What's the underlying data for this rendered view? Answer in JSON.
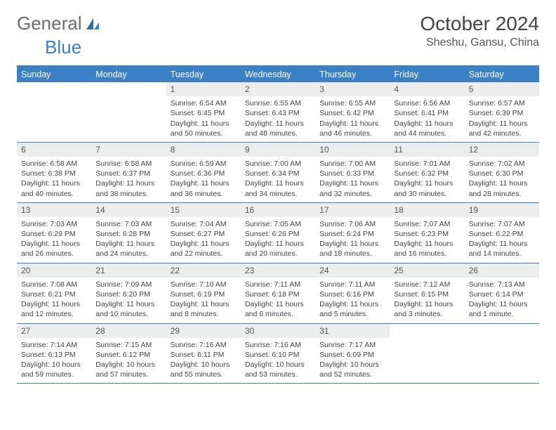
{
  "logo": {
    "text1": "General",
    "text2": "Blue"
  },
  "title": "October 2024",
  "location": "Sheshu, Gansu, China",
  "colors": {
    "header_bg": "#3b7fc4",
    "daynum_bg": "#eceded",
    "text": "#444444",
    "logo_gray": "#6b6b6b",
    "logo_blue": "#3b7fc4"
  },
  "dow": [
    "Sunday",
    "Monday",
    "Tuesday",
    "Wednesday",
    "Thursday",
    "Friday",
    "Saturday"
  ],
  "weeks": [
    [
      {
        "empty": true
      },
      {
        "empty": true
      },
      {
        "n": "1",
        "sr": "Sunrise: 6:54 AM",
        "ss": "Sunset: 6:45 PM",
        "dl1": "Daylight: 11 hours",
        "dl2": "and 50 minutes."
      },
      {
        "n": "2",
        "sr": "Sunrise: 6:55 AM",
        "ss": "Sunset: 6:43 PM",
        "dl1": "Daylight: 11 hours",
        "dl2": "and 48 minutes."
      },
      {
        "n": "3",
        "sr": "Sunrise: 6:55 AM",
        "ss": "Sunset: 6:42 PM",
        "dl1": "Daylight: 11 hours",
        "dl2": "and 46 minutes."
      },
      {
        "n": "4",
        "sr": "Sunrise: 6:56 AM",
        "ss": "Sunset: 6:41 PM",
        "dl1": "Daylight: 11 hours",
        "dl2": "and 44 minutes."
      },
      {
        "n": "5",
        "sr": "Sunrise: 6:57 AM",
        "ss": "Sunset: 6:39 PM",
        "dl1": "Daylight: 11 hours",
        "dl2": "and 42 minutes."
      }
    ],
    [
      {
        "n": "6",
        "sr": "Sunrise: 6:58 AM",
        "ss": "Sunset: 6:38 PM",
        "dl1": "Daylight: 11 hours",
        "dl2": "and 40 minutes."
      },
      {
        "n": "7",
        "sr": "Sunrise: 6:58 AM",
        "ss": "Sunset: 6:37 PM",
        "dl1": "Daylight: 11 hours",
        "dl2": "and 38 minutes."
      },
      {
        "n": "8",
        "sr": "Sunrise: 6:59 AM",
        "ss": "Sunset: 6:36 PM",
        "dl1": "Daylight: 11 hours",
        "dl2": "and 36 minutes."
      },
      {
        "n": "9",
        "sr": "Sunrise: 7:00 AM",
        "ss": "Sunset: 6:34 PM",
        "dl1": "Daylight: 11 hours",
        "dl2": "and 34 minutes."
      },
      {
        "n": "10",
        "sr": "Sunrise: 7:00 AM",
        "ss": "Sunset: 6:33 PM",
        "dl1": "Daylight: 11 hours",
        "dl2": "and 32 minutes."
      },
      {
        "n": "11",
        "sr": "Sunrise: 7:01 AM",
        "ss": "Sunset: 6:32 PM",
        "dl1": "Daylight: 11 hours",
        "dl2": "and 30 minutes."
      },
      {
        "n": "12",
        "sr": "Sunrise: 7:02 AM",
        "ss": "Sunset: 6:30 PM",
        "dl1": "Daylight: 11 hours",
        "dl2": "and 28 minutes."
      }
    ],
    [
      {
        "n": "13",
        "sr": "Sunrise: 7:03 AM",
        "ss": "Sunset: 6:29 PM",
        "dl1": "Daylight: 11 hours",
        "dl2": "and 26 minutes."
      },
      {
        "n": "14",
        "sr": "Sunrise: 7:03 AM",
        "ss": "Sunset: 6:28 PM",
        "dl1": "Daylight: 11 hours",
        "dl2": "and 24 minutes."
      },
      {
        "n": "15",
        "sr": "Sunrise: 7:04 AM",
        "ss": "Sunset: 6:27 PM",
        "dl1": "Daylight: 11 hours",
        "dl2": "and 22 minutes."
      },
      {
        "n": "16",
        "sr": "Sunrise: 7:05 AM",
        "ss": "Sunset: 6:26 PM",
        "dl1": "Daylight: 11 hours",
        "dl2": "and 20 minutes."
      },
      {
        "n": "17",
        "sr": "Sunrise: 7:06 AM",
        "ss": "Sunset: 6:24 PM",
        "dl1": "Daylight: 11 hours",
        "dl2": "and 18 minutes."
      },
      {
        "n": "18",
        "sr": "Sunrise: 7:07 AM",
        "ss": "Sunset: 6:23 PM",
        "dl1": "Daylight: 11 hours",
        "dl2": "and 16 minutes."
      },
      {
        "n": "19",
        "sr": "Sunrise: 7:07 AM",
        "ss": "Sunset: 6:22 PM",
        "dl1": "Daylight: 11 hours",
        "dl2": "and 14 minutes."
      }
    ],
    [
      {
        "n": "20",
        "sr": "Sunrise: 7:08 AM",
        "ss": "Sunset: 6:21 PM",
        "dl1": "Daylight: 11 hours",
        "dl2": "and 12 minutes."
      },
      {
        "n": "21",
        "sr": "Sunrise: 7:09 AM",
        "ss": "Sunset: 6:20 PM",
        "dl1": "Daylight: 11 hours",
        "dl2": "and 10 minutes."
      },
      {
        "n": "22",
        "sr": "Sunrise: 7:10 AM",
        "ss": "Sunset: 6:19 PM",
        "dl1": "Daylight: 11 hours",
        "dl2": "and 8 minutes."
      },
      {
        "n": "23",
        "sr": "Sunrise: 7:11 AM",
        "ss": "Sunset: 6:18 PM",
        "dl1": "Daylight: 11 hours",
        "dl2": "and 6 minutes."
      },
      {
        "n": "24",
        "sr": "Sunrise: 7:11 AM",
        "ss": "Sunset: 6:16 PM",
        "dl1": "Daylight: 11 hours",
        "dl2": "and 5 minutes."
      },
      {
        "n": "25",
        "sr": "Sunrise: 7:12 AM",
        "ss": "Sunset: 6:15 PM",
        "dl1": "Daylight: 11 hours",
        "dl2": "and 3 minutes."
      },
      {
        "n": "26",
        "sr": "Sunrise: 7:13 AM",
        "ss": "Sunset: 6:14 PM",
        "dl1": "Daylight: 11 hours",
        "dl2": "and 1 minute."
      }
    ],
    [
      {
        "n": "27",
        "sr": "Sunrise: 7:14 AM",
        "ss": "Sunset: 6:13 PM",
        "dl1": "Daylight: 10 hours",
        "dl2": "and 59 minutes."
      },
      {
        "n": "28",
        "sr": "Sunrise: 7:15 AM",
        "ss": "Sunset: 6:12 PM",
        "dl1": "Daylight: 10 hours",
        "dl2": "and 57 minutes."
      },
      {
        "n": "29",
        "sr": "Sunrise: 7:16 AM",
        "ss": "Sunset: 6:11 PM",
        "dl1": "Daylight: 10 hours",
        "dl2": "and 55 minutes."
      },
      {
        "n": "30",
        "sr": "Sunrise: 7:16 AM",
        "ss": "Sunset: 6:10 PM",
        "dl1": "Daylight: 10 hours",
        "dl2": "and 53 minutes."
      },
      {
        "n": "31",
        "sr": "Sunrise: 7:17 AM",
        "ss": "Sunset: 6:09 PM",
        "dl1": "Daylight: 10 hours",
        "dl2": "and 52 minutes."
      },
      {
        "empty": true
      },
      {
        "empty": true
      }
    ]
  ]
}
